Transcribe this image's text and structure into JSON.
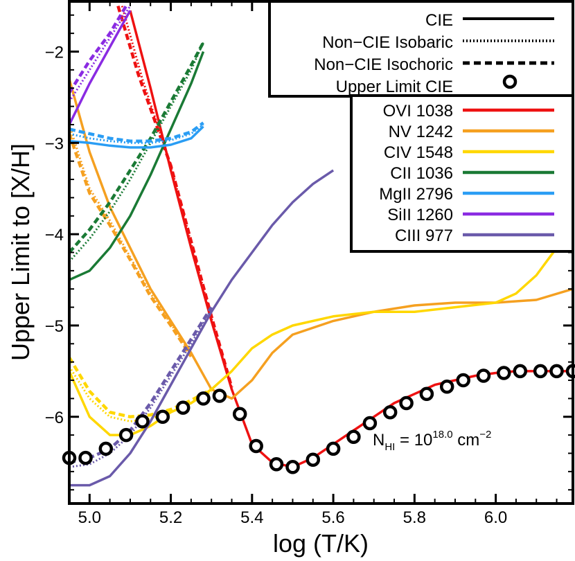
{
  "chart_data": {
    "type": "line",
    "xlabel": "log (T/K)",
    "ylabel": "Upper Limit to [X/H]",
    "xlim": [
      4.95,
      6.19
    ],
    "ylim": [
      -6.95,
      -1.45
    ],
    "xticks": [
      "5.0",
      "5.2",
      "5.4",
      "5.6",
      "5.8",
      "6.0"
    ],
    "yticks": [
      "−6",
      "−5",
      "−4",
      "−3",
      "−2"
    ],
    "annotation": {
      "prefix": "N",
      "subscript": "HI",
      "equals": " = 10",
      "exponent": "18.0",
      "unit": " cm",
      "unit_exponent": "−2"
    },
    "style_legend": [
      {
        "label": "CIE",
        "style": "solid"
      },
      {
        "label": "Non−CIE Isobaric",
        "style": "dotted"
      },
      {
        "label": "Non−CIE Isochoric",
        "style": "dashed"
      },
      {
        "label": "Upper Limit CIE",
        "style": "circle"
      }
    ],
    "series": [
      {
        "name": "OVI 1038",
        "color": "#ee1111",
        "cie": [
          [
            5.1,
            -1.55
          ],
          [
            5.15,
            -2.4
          ],
          [
            5.2,
            -3.3
          ],
          [
            5.25,
            -4.15
          ],
          [
            5.3,
            -4.95
          ],
          [
            5.35,
            -5.7
          ],
          [
            5.4,
            -6.3
          ],
          [
            5.45,
            -6.5
          ],
          [
            5.5,
            -6.55
          ],
          [
            5.55,
            -6.45
          ],
          [
            5.6,
            -6.3
          ],
          [
            5.65,
            -6.15
          ],
          [
            5.7,
            -6.0
          ],
          [
            5.75,
            -5.85
          ],
          [
            5.8,
            -5.75
          ],
          [
            5.85,
            -5.65
          ],
          [
            5.9,
            -5.6
          ],
          [
            5.95,
            -5.55
          ],
          [
            6.0,
            -5.52
          ],
          [
            6.05,
            -5.5
          ],
          [
            6.1,
            -5.5
          ],
          [
            6.19,
            -5.5
          ]
        ],
        "isobaric": [
          [
            5.08,
            -1.5
          ],
          [
            5.13,
            -2.3
          ],
          [
            5.2,
            -3.25
          ],
          [
            5.25,
            -4.1
          ],
          [
            5.3,
            -4.92
          ],
          [
            5.35,
            -5.68
          ]
        ],
        "isochoric": [
          [
            5.07,
            -1.5
          ],
          [
            5.12,
            -2.25
          ],
          [
            5.2,
            -3.25
          ],
          [
            5.25,
            -4.08
          ],
          [
            5.3,
            -4.9
          ],
          [
            5.35,
            -5.68
          ]
        ]
      },
      {
        "name": "NV 1242",
        "color": "#f5a020",
        "cie": [
          [
            4.95,
            -2.3
          ],
          [
            5.0,
            -3.1
          ],
          [
            5.05,
            -3.7
          ],
          [
            5.1,
            -4.15
          ],
          [
            5.15,
            -4.6
          ],
          [
            5.2,
            -4.95
          ],
          [
            5.25,
            -5.3
          ],
          [
            5.3,
            -5.7
          ],
          [
            5.35,
            -5.8
          ],
          [
            5.4,
            -5.6
          ],
          [
            5.45,
            -5.3
          ],
          [
            5.5,
            -5.1
          ],
          [
            5.6,
            -4.95
          ],
          [
            5.7,
            -4.85
          ],
          [
            5.8,
            -4.78
          ],
          [
            5.9,
            -4.75
          ],
          [
            6.0,
            -4.75
          ],
          [
            6.1,
            -4.72
          ],
          [
            6.19,
            -4.6
          ]
        ],
        "isobaric": [
          [
            4.95,
            -2.8
          ],
          [
            5.0,
            -3.5
          ],
          [
            5.05,
            -3.85
          ],
          [
            5.1,
            -4.25
          ],
          [
            5.15,
            -4.65
          ],
          [
            5.2,
            -4.98
          ],
          [
            5.25,
            -5.32
          ]
        ],
        "isochoric": [
          [
            4.95,
            -2.9
          ],
          [
            5.0,
            -3.55
          ],
          [
            5.05,
            -3.9
          ],
          [
            5.1,
            -4.28
          ],
          [
            5.15,
            -4.68
          ],
          [
            5.2,
            -5.0
          ],
          [
            5.25,
            -5.34
          ]
        ]
      },
      {
        "name": "CIV 1548",
        "color": "#ffd700",
        "cie": [
          [
            4.95,
            -5.5
          ],
          [
            5.0,
            -6.0
          ],
          [
            5.05,
            -6.2
          ],
          [
            5.1,
            -6.2
          ],
          [
            5.15,
            -6.1
          ],
          [
            5.2,
            -5.95
          ],
          [
            5.25,
            -5.85
          ],
          [
            5.3,
            -5.7
          ],
          [
            5.35,
            -5.5
          ],
          [
            5.4,
            -5.25
          ],
          [
            5.45,
            -5.1
          ],
          [
            5.5,
            -5.0
          ],
          [
            5.6,
            -4.9
          ],
          [
            5.7,
            -4.85
          ],
          [
            5.8,
            -4.85
          ],
          [
            5.9,
            -4.8
          ],
          [
            6.0,
            -4.75
          ],
          [
            6.05,
            -4.65
          ],
          [
            6.1,
            -4.45
          ],
          [
            6.15,
            -4.15
          ],
          [
            6.19,
            -3.85
          ]
        ],
        "isobaric": [
          [
            4.95,
            -5.45
          ],
          [
            5.0,
            -5.8
          ],
          [
            5.05,
            -6.0
          ],
          [
            5.1,
            -6.05
          ],
          [
            5.15,
            -6.02
          ],
          [
            5.2,
            -5.95
          ],
          [
            5.25,
            -5.85
          ],
          [
            5.3,
            -5.72
          ]
        ],
        "isochoric": [
          [
            4.95,
            -5.35
          ],
          [
            5.0,
            -5.72
          ],
          [
            5.05,
            -5.95
          ],
          [
            5.1,
            -6.0
          ],
          [
            5.15,
            -5.98
          ],
          [
            5.2,
            -5.92
          ],
          [
            5.25,
            -5.82
          ],
          [
            5.3,
            -5.7
          ]
        ]
      },
      {
        "name": "CII 1036",
        "color": "#1a7a35",
        "cie": [
          [
            4.95,
            -4.5
          ],
          [
            5.0,
            -4.4
          ],
          [
            5.05,
            -4.15
          ],
          [
            5.1,
            -3.8
          ],
          [
            5.15,
            -3.35
          ],
          [
            5.2,
            -2.85
          ],
          [
            5.25,
            -2.35
          ],
          [
            5.28,
            -2.0
          ]
        ],
        "isobaric": [
          [
            4.95,
            -4.3
          ],
          [
            5.0,
            -4.05
          ],
          [
            5.05,
            -3.75
          ],
          [
            5.1,
            -3.4
          ],
          [
            5.15,
            -3.0
          ],
          [
            5.2,
            -2.6
          ],
          [
            5.25,
            -2.2
          ],
          [
            5.28,
            -1.9
          ]
        ],
        "isochoric": [
          [
            4.95,
            -4.2
          ],
          [
            5.0,
            -3.95
          ],
          [
            5.05,
            -3.65
          ],
          [
            5.1,
            -3.3
          ],
          [
            5.15,
            -2.95
          ],
          [
            5.2,
            -2.55
          ],
          [
            5.25,
            -2.15
          ],
          [
            5.28,
            -1.9
          ]
        ]
      },
      {
        "name": "MgII 2796",
        "color": "#2a9df4",
        "cie": [
          [
            4.95,
            -2.98
          ],
          [
            5.0,
            -3.0
          ],
          [
            5.05,
            -3.03
          ],
          [
            5.1,
            -3.05
          ],
          [
            5.15,
            -3.05
          ],
          [
            5.2,
            -3.02
          ],
          [
            5.25,
            -2.95
          ],
          [
            5.28,
            -2.82
          ]
        ],
        "isobaric": [
          [
            4.95,
            -2.9
          ],
          [
            5.0,
            -2.95
          ],
          [
            5.05,
            -2.98
          ],
          [
            5.1,
            -3.0
          ],
          [
            5.15,
            -3.0
          ],
          [
            5.2,
            -2.97
          ],
          [
            5.25,
            -2.9
          ],
          [
            5.28,
            -2.8
          ]
        ],
        "isochoric": [
          [
            4.95,
            -2.85
          ],
          [
            5.0,
            -2.9
          ],
          [
            5.05,
            -2.95
          ],
          [
            5.1,
            -2.98
          ],
          [
            5.15,
            -2.98
          ],
          [
            5.2,
            -2.95
          ],
          [
            5.25,
            -2.88
          ],
          [
            5.28,
            -2.78
          ]
        ]
      },
      {
        "name": "SiII 1260",
        "color": "#8a2be2",
        "cie": [
          [
            4.95,
            -2.8
          ],
          [
            5.0,
            -2.35
          ],
          [
            5.05,
            -1.95
          ],
          [
            5.1,
            -1.55
          ]
        ],
        "isobaric": [
          [
            4.95,
            -2.55
          ],
          [
            5.0,
            -2.2
          ],
          [
            5.05,
            -1.85
          ],
          [
            5.1,
            -1.5
          ]
        ],
        "isochoric": [
          [
            4.95,
            -2.45
          ],
          [
            5.0,
            -2.1
          ],
          [
            5.05,
            -1.8
          ],
          [
            5.09,
            -1.5
          ]
        ]
      },
      {
        "name": "CIII 977",
        "color": "#6a5aaa",
        "cie": [
          [
            4.95,
            -6.75
          ],
          [
            5.0,
            -6.75
          ],
          [
            5.05,
            -6.65
          ],
          [
            5.1,
            -6.4
          ],
          [
            5.15,
            -6.05
          ],
          [
            5.2,
            -5.65
          ],
          [
            5.25,
            -5.25
          ],
          [
            5.3,
            -4.85
          ],
          [
            5.35,
            -4.5
          ],
          [
            5.4,
            -4.2
          ],
          [
            5.45,
            -3.9
          ],
          [
            5.5,
            -3.65
          ],
          [
            5.55,
            -3.45
          ],
          [
            5.6,
            -3.3
          ]
        ],
        "isobaric": [
          [
            4.95,
            -6.55
          ],
          [
            5.0,
            -6.52
          ],
          [
            5.05,
            -6.4
          ],
          [
            5.1,
            -6.2
          ],
          [
            5.15,
            -5.9
          ],
          [
            5.2,
            -5.55
          ],
          [
            5.25,
            -5.2
          ],
          [
            5.3,
            -4.82
          ]
        ],
        "isochoric": [
          [
            4.95,
            -6.5
          ],
          [
            5.0,
            -6.45
          ],
          [
            5.05,
            -6.35
          ],
          [
            5.1,
            -6.15
          ],
          [
            5.15,
            -5.85
          ],
          [
            5.2,
            -5.5
          ],
          [
            5.25,
            -5.15
          ],
          [
            5.3,
            -4.8
          ]
        ]
      }
    ],
    "upper_limit_points": [
      [
        4.95,
        -6.45
      ],
      [
        4.99,
        -6.45
      ],
      [
        5.04,
        -6.35
      ],
      [
        5.09,
        -6.2
      ],
      [
        5.13,
        -6.05
      ],
      [
        5.18,
        -6.0
      ],
      [
        5.23,
        -5.9
      ],
      [
        5.28,
        -5.8
      ],
      [
        5.32,
        -5.77
      ],
      [
        5.37,
        -5.97
      ],
      [
        5.41,
        -6.32
      ],
      [
        5.46,
        -6.52
      ],
      [
        5.5,
        -6.55
      ],
      [
        5.55,
        -6.47
      ],
      [
        5.6,
        -6.35
      ],
      [
        5.65,
        -6.22
      ],
      [
        5.69,
        -6.07
      ],
      [
        5.74,
        -5.95
      ],
      [
        5.78,
        -5.85
      ],
      [
        5.83,
        -5.75
      ],
      [
        5.88,
        -5.67
      ],
      [
        5.92,
        -5.6
      ],
      [
        5.97,
        -5.55
      ],
      [
        6.02,
        -5.52
      ],
      [
        6.06,
        -5.5
      ],
      [
        6.11,
        -5.5
      ],
      [
        6.15,
        -5.5
      ],
      [
        6.19,
        -5.5
      ]
    ]
  }
}
